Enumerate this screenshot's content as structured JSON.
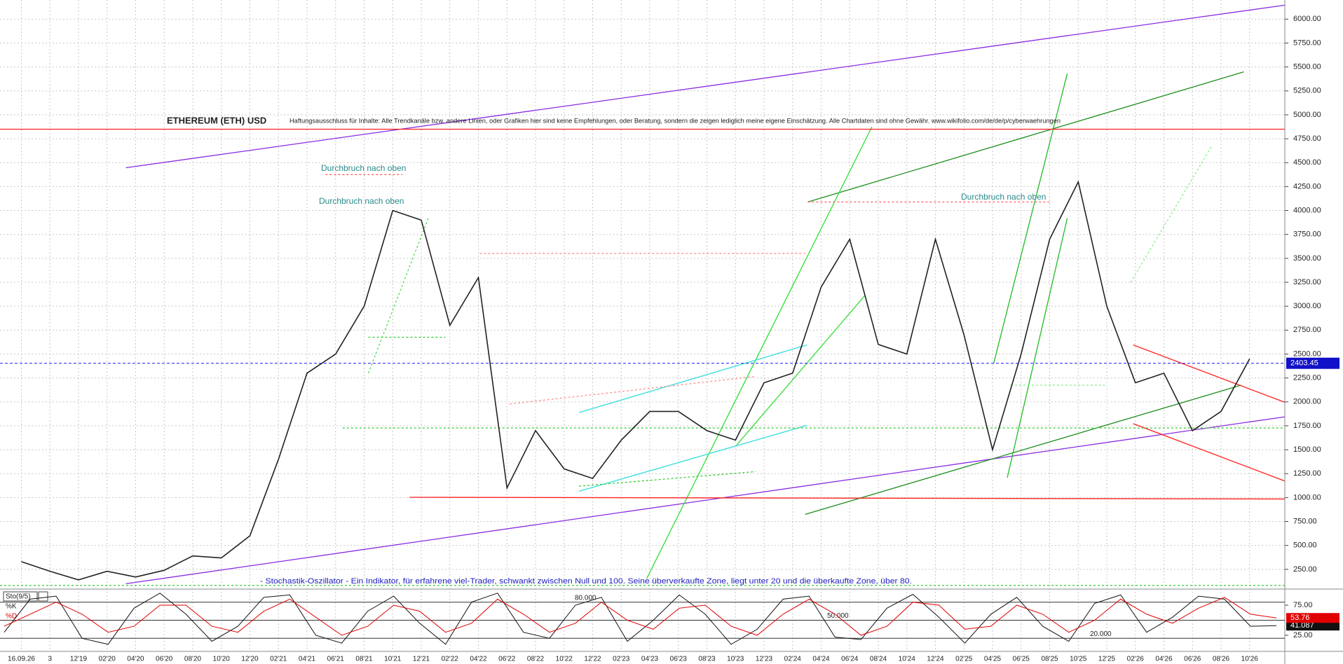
{
  "chart_data": [
    {
      "type": "line",
      "title": "ETHEREUM (ETH) USD",
      "disclaimer": "Haftungsausschluss für Inhalte: Alle Trendkanäle bzw. andere Linien, oder Grafiken hier sind keine Empfehlungen, oder Beratung, sondern die zeigen lediglich meine eigene Einschätzung. Alle Chartdaten sind ohne Gewähr. www.wikifolio.com/de/de/p/cyberwaehrungen",
      "annotations": [
        "Durchbruch nach oben",
        "Durchbruch nach oben",
        "Durchbruch nach oben"
      ],
      "indicator_note": "- Stochastik-Oszillator - Ein Indikator, für erfahrene viel-Trader, schwankt zwischen Null und 100. Seine überverkaufte Zone, liegt unter 20 und die überkaufte Zone, über 80.",
      "categories": [
        "16.09.26",
        "3",
        "12'19",
        "02'20",
        "04'20",
        "06'20",
        "08'20",
        "10'20",
        "12'20",
        "02'21",
        "04'21",
        "06'21",
        "08'21",
        "10'21",
        "12'21",
        "02'22",
        "04'22",
        "06'22",
        "08'22",
        "10'22",
        "12'22",
        "02'23",
        "04'23",
        "06'23",
        "08'23",
        "10'23",
        "12'23",
        "02'24",
        "04'24",
        "06'24",
        "08'24",
        "10'24",
        "12'24",
        "02'25",
        "04'25",
        "06'25",
        "08'25",
        "10'25",
        "12'25",
        "02'26",
        "04'26",
        "06'26",
        "08'26",
        "10'26"
      ],
      "values": [
        330,
        230,
        140,
        230,
        170,
        240,
        390,
        370,
        600,
        1400,
        2300,
        2500,
        3000,
        4000,
        3900,
        2800,
        3300,
        1100,
        1700,
        1300,
        1200,
        1600,
        1900,
        1900,
        1700,
        1600,
        2200,
        2300,
        3200,
        3700,
        2600,
        2500,
        3700,
        2700,
        1500,
        2500,
        3700,
        4300,
        3000,
        2200,
        2300,
        1700,
        1900,
        2450
      ],
      "color": "#222222",
      "last_price": 2403.45,
      "ylim": [
        0,
        6200
      ],
      "yticks": [
        {
          "value": 250,
          "label": "250.00"
        },
        {
          "value": 500,
          "label": "500.00"
        },
        {
          "value": 750,
          "label": "750.00"
        },
        {
          "value": 1000,
          "label": "1000.00"
        },
        {
          "value": 1250,
          "label": "1250.00"
        },
        {
          "value": 1500,
          "label": "1500.00"
        },
        {
          "value": 1750,
          "label": "1750.00"
        },
        {
          "value": 2000,
          "label": "2000.00"
        },
        {
          "value": 2250,
          "label": "2250.00"
        },
        {
          "value": 2500,
          "label": "2500.00"
        },
        {
          "value": 2750,
          "label": "2750.00"
        },
        {
          "value": 3000,
          "label": "3000.00"
        },
        {
          "value": 3250,
          "label": "3250.00"
        },
        {
          "value": 3500,
          "label": "3500.00"
        },
        {
          "value": 3750,
          "label": "3750.00"
        },
        {
          "value": 4000,
          "label": "4000.00"
        },
        {
          "value": 4250,
          "label": "4250.00"
        },
        {
          "value": 4500,
          "label": "4500.00"
        },
        {
          "value": 4750,
          "label": "4750.00"
        },
        {
          "value": 5000,
          "label": "5000.00"
        },
        {
          "value": 5250,
          "label": "5250.00"
        },
        {
          "value": 5500,
          "label": "5500.00"
        },
        {
          "value": 5750,
          "label": "5750.00"
        },
        {
          "value": 6000,
          "label": "6000.00"
        }
      ],
      "grid": true
    },
    {
      "type": "line",
      "title": "Sto(9/5)",
      "series": [
        {
          "name": "%K",
          "color": "#111111",
          "values": [
            30,
            85,
            90,
            20,
            10,
            70,
            95,
            60,
            15,
            40,
            88,
            92,
            25,
            12,
            65,
            90,
            45,
            10,
            80,
            95,
            30,
            20,
            75,
            88,
            15,
            50,
            92,
            60,
            10,
            35,
            85,
            90,
            22,
            18,
            70,
            93,
            55,
            12,
            60,
            88,
            40,
            15,
            78,
            92,
            30,
            55,
            90,
            85,
            40,
            41.087
          ]
        },
        {
          "name": "%D",
          "color": "#e00000",
          "values": [
            40,
            60,
            80,
            60,
            30,
            40,
            75,
            75,
            40,
            30,
            65,
            85,
            55,
            25,
            40,
            75,
            65,
            30,
            45,
            85,
            60,
            30,
            45,
            80,
            50,
            35,
            70,
            75,
            40,
            25,
            60,
            85,
            60,
            25,
            40,
            80,
            75,
            35,
            40,
            75,
            60,
            30,
            50,
            85,
            60,
            45,
            70,
            88,
            60,
            53.76
          ]
        }
      ],
      "levels": [
        {
          "value": 80,
          "label": "80.000"
        },
        {
          "value": 50,
          "label": "50.000"
        },
        {
          "value": 20,
          "label": "20.000"
        }
      ],
      "ylim": [
        0,
        100
      ],
      "yticks": [
        {
          "value": 75,
          "label": "75.00"
        },
        {
          "value": 25,
          "label": "25.00"
        }
      ]
    }
  ]
}
